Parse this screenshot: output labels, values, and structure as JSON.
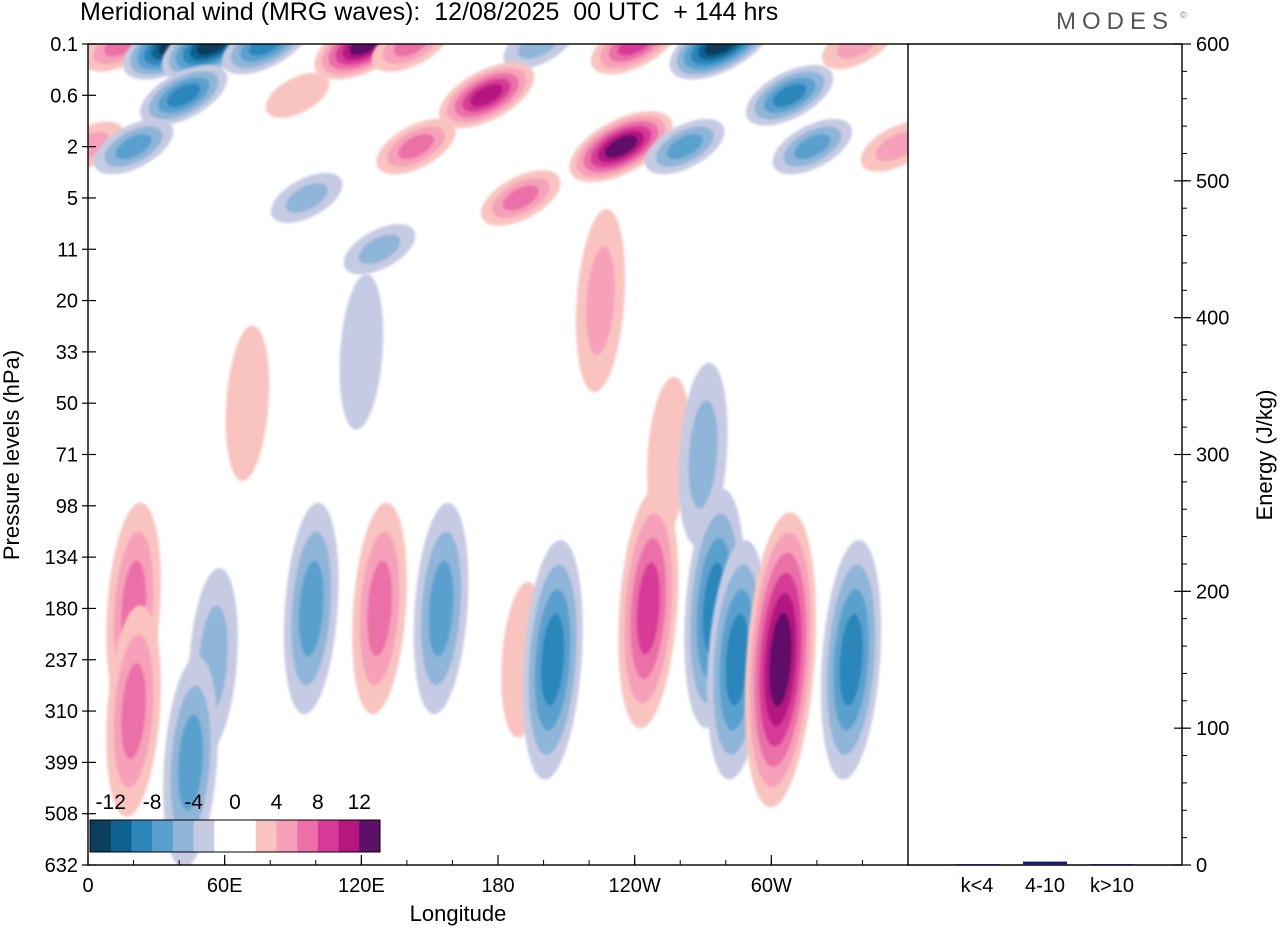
{
  "title": "Meridional wind (MRG waves):  12/08/2025  00 UTC  + 144 hrs",
  "brand": "MODES",
  "brand_mark": "©",
  "chart_data": [
    {
      "type": "heatmap",
      "title": "Meridional wind (MRG waves):  12/08/2025  00 UTC  + 144 hrs",
      "xlabel": "Longitude",
      "ylabel": "Pressure levels (hPa)",
      "x_ticks": [
        "0",
        "60E",
        "120E",
        "180",
        "120W",
        "60W"
      ],
      "x_tick_degrees": [
        0,
        60,
        120,
        180,
        240,
        300
      ],
      "xlim": [
        0,
        360
      ],
      "y_ticks": [
        "0.1",
        "0.6",
        "2",
        "5",
        "11",
        "20",
        "33",
        "50",
        "71",
        "98",
        "134",
        "180",
        "237",
        "310",
        "399",
        "508",
        "632"
      ],
      "colorbar": {
        "labels": [
          "-12",
          "-8",
          "-4",
          "0",
          "4",
          "8",
          "12"
        ],
        "levels": [
          -14,
          -12,
          -10,
          -8,
          -6,
          -4,
          -2,
          2,
          4,
          6,
          8,
          10,
          12,
          14
        ],
        "colors": [
          "#0b3d5c",
          "#0d6290",
          "#2a86bb",
          "#5aa0cf",
          "#8fb5d8",
          "#c6cbe3",
          "#ffffff",
          "#ffffff",
          "#f9c4c0",
          "#f6a1b9",
          "#ec6fa8",
          "#d83a97",
          "#b41880",
          "#5e1069"
        ]
      },
      "features": [
        {
          "lon": 15,
          "p": "0.1",
          "v": 8
        },
        {
          "lon": 38,
          "p": "0.1",
          "v": -14
        },
        {
          "lon": 55,
          "p": "0.1",
          "v": -14
        },
        {
          "lon": 78,
          "p": "0.1",
          "v": -10
        },
        {
          "lon": 122,
          "p": "0.1",
          "v": 14
        },
        {
          "lon": 142,
          "p": "0.1",
          "v": 8
        },
        {
          "lon": 198,
          "p": "0.1",
          "v": -6
        },
        {
          "lon": 240,
          "p": "0.1",
          "v": 10
        },
        {
          "lon": 278,
          "p": "0.1",
          "v": -14
        },
        {
          "lon": 338,
          "p": "0.1",
          "v": 6
        },
        {
          "lon": 42,
          "p": "0.6",
          "v": -10
        },
        {
          "lon": 92,
          "p": "0.6",
          "v": 4
        },
        {
          "lon": 175,
          "p": "0.6",
          "v": 12
        },
        {
          "lon": 308,
          "p": "0.6",
          "v": -10
        },
        {
          "lon": 0,
          "p": "2",
          "v": 6
        },
        {
          "lon": 20,
          "p": "2",
          "v": -8
        },
        {
          "lon": 144,
          "p": "2",
          "v": 8
        },
        {
          "lon": 234,
          "p": "2",
          "v": 14
        },
        {
          "lon": 262,
          "p": "2",
          "v": -8
        },
        {
          "lon": 318,
          "p": "2",
          "v": -8
        },
        {
          "lon": 355,
          "p": "2",
          "v": 6
        },
        {
          "lon": 190,
          "p": "5",
          "v": 8
        },
        {
          "lon": 96,
          "p": "5",
          "v": -6
        },
        {
          "lon": 128,
          "p": "11",
          "v": -6
        },
        {
          "lon": 225,
          "p": "20",
          "v": 6
        },
        {
          "lon": 120,
          "p": "33",
          "v": -4
        },
        {
          "lon": 70,
          "p": "50",
          "v": 4
        },
        {
          "lon": 255,
          "p": "71",
          "v": 4
        },
        {
          "lon": 270,
          "p": "71",
          "v": -6
        },
        {
          "lon": 20,
          "p": "180",
          "v": 8
        },
        {
          "lon": 55,
          "p": "237",
          "v": -6
        },
        {
          "lon": 98,
          "p": "180",
          "v": -8
        },
        {
          "lon": 128,
          "p": "180",
          "v": 8
        },
        {
          "lon": 155,
          "p": "180",
          "v": -8
        },
        {
          "lon": 191,
          "p": "237",
          "v": 4
        },
        {
          "lon": 204,
          "p": "237",
          "v": -10
        },
        {
          "lon": 246,
          "p": "180",
          "v": 10
        },
        {
          "lon": 275,
          "p": "180",
          "v": -10
        },
        {
          "lon": 285,
          "p": "237",
          "v": -10
        },
        {
          "lon": 304,
          "p": "237",
          "v": 14
        },
        {
          "lon": 335,
          "p": "237",
          "v": -10
        },
        {
          "lon": 20,
          "p": "310",
          "v": 8
        },
        {
          "lon": 45,
          "p": "399",
          "v": -8
        }
      ]
    },
    {
      "type": "bar",
      "ylabel": "Energy (J/kg)",
      "ylim": [
        0,
        600
      ],
      "y_ticks": [
        "0",
        "100",
        "200",
        "300",
        "400",
        "500",
        "600"
      ],
      "categories": [
        "k<4",
        "4-10",
        "k>10"
      ],
      "values": [
        0.3,
        2.5,
        0.3
      ],
      "colors": [
        "#1a1a6e",
        "#1a1a6e",
        "#1a1a6e"
      ]
    }
  ]
}
